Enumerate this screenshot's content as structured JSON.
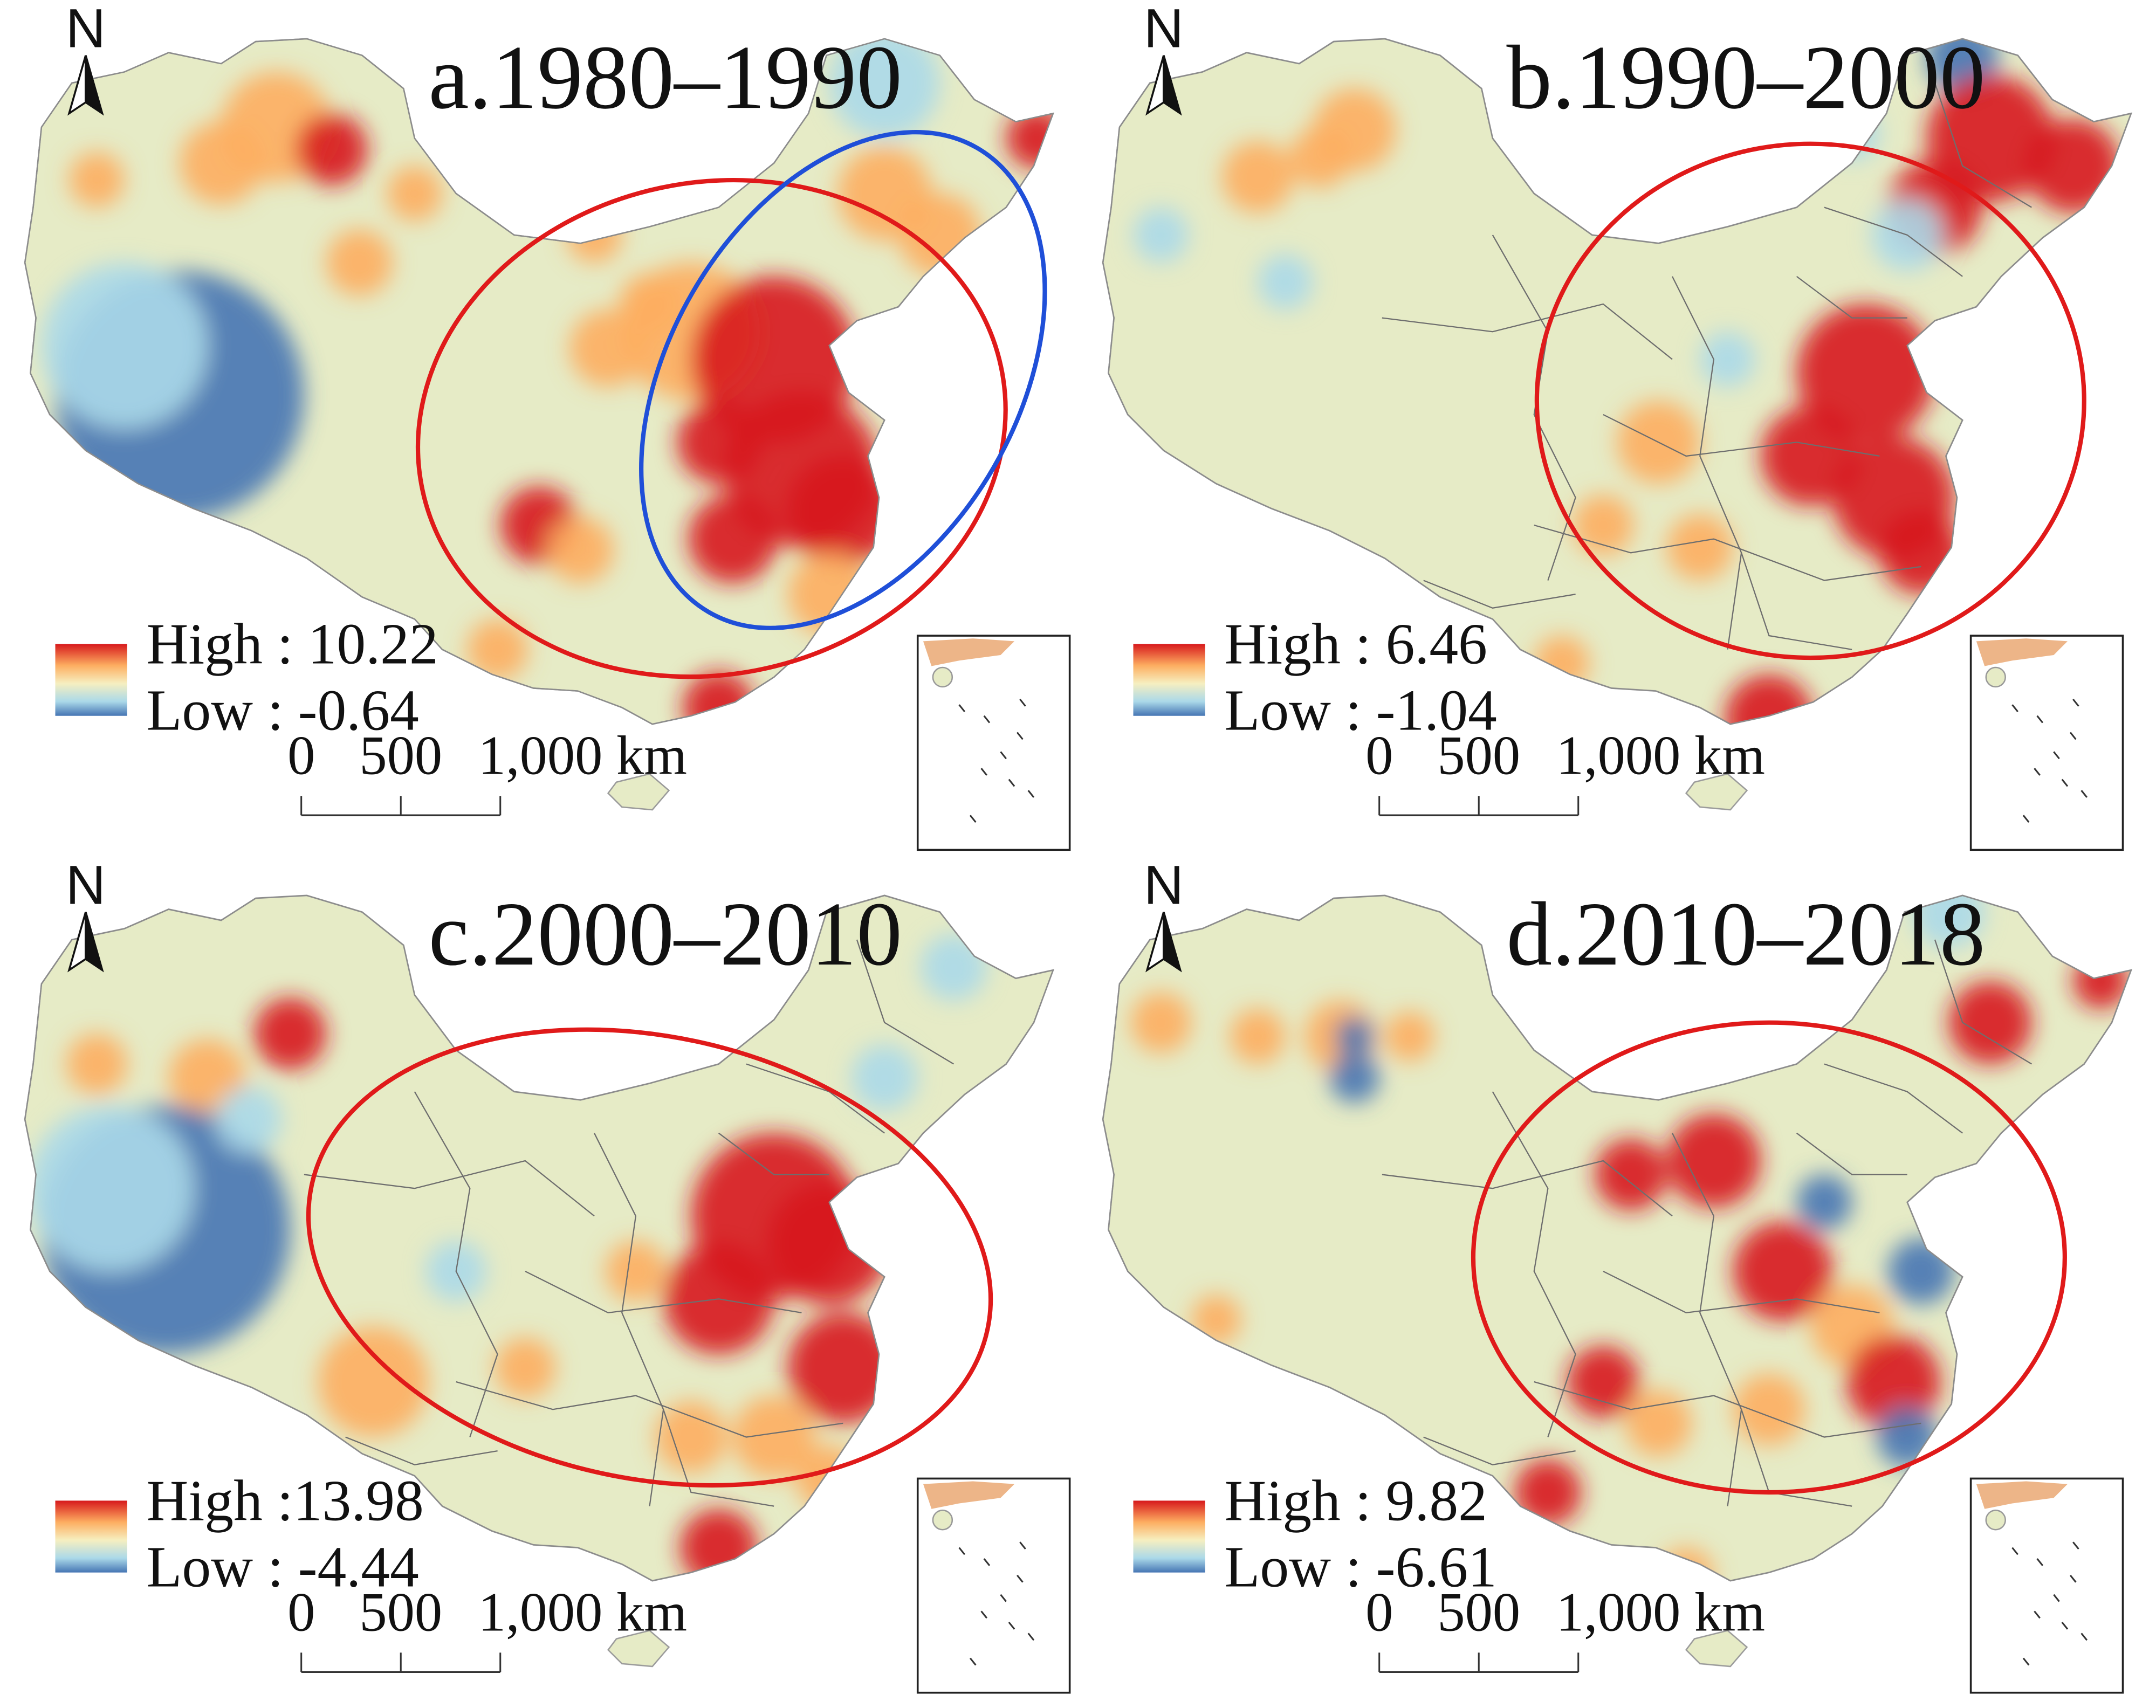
{
  "colors": {
    "high": "#d7191c",
    "mid_high": "#fdae61",
    "mid": "#f6efc0",
    "mid_low": "#abd9e9",
    "low": "#4575b4",
    "base_land": "#e6ebc6",
    "ellipse_red": "#e01a1a",
    "ellipse_blue": "#1f4fd8",
    "boundary": "#6e6e6e"
  },
  "north_arrow": {
    "label": "N",
    "icon": "north-arrow-icon"
  },
  "scale_bar": {
    "ticks": [
      "0",
      "500",
      "1,000 km"
    ]
  },
  "panels": [
    {
      "id": "a",
      "title": "a.1980–1990",
      "legend": {
        "high": "High : 10.22",
        "low": "Low : -0.64",
        "high_value": 10.22,
        "low_value": -0.64
      },
      "ellipses": [
        "red",
        "blue"
      ],
      "provincial_boundaries": false
    },
    {
      "id": "b",
      "title": "b.1990–2000",
      "legend": {
        "high": "High : 6.46",
        "low": "Low : -1.04",
        "high_value": 6.46,
        "low_value": -1.04
      },
      "ellipses": [
        "red"
      ],
      "provincial_boundaries": true
    },
    {
      "id": "c",
      "title": "c.2000–2010",
      "legend": {
        "high": "High :13.98",
        "low": "Low : -4.44",
        "high_value": 13.98,
        "low_value": -4.44
      },
      "ellipses": [
        "red"
      ],
      "provincial_boundaries": true
    },
    {
      "id": "d",
      "title": "d.2010–2018",
      "legend": {
        "high": "High : 9.82",
        "low": "Low : -6.61",
        "high_value": 9.82,
        "low_value": -6.61
      },
      "ellipses": [
        "red"
      ],
      "provincial_boundaries": true
    }
  ]
}
